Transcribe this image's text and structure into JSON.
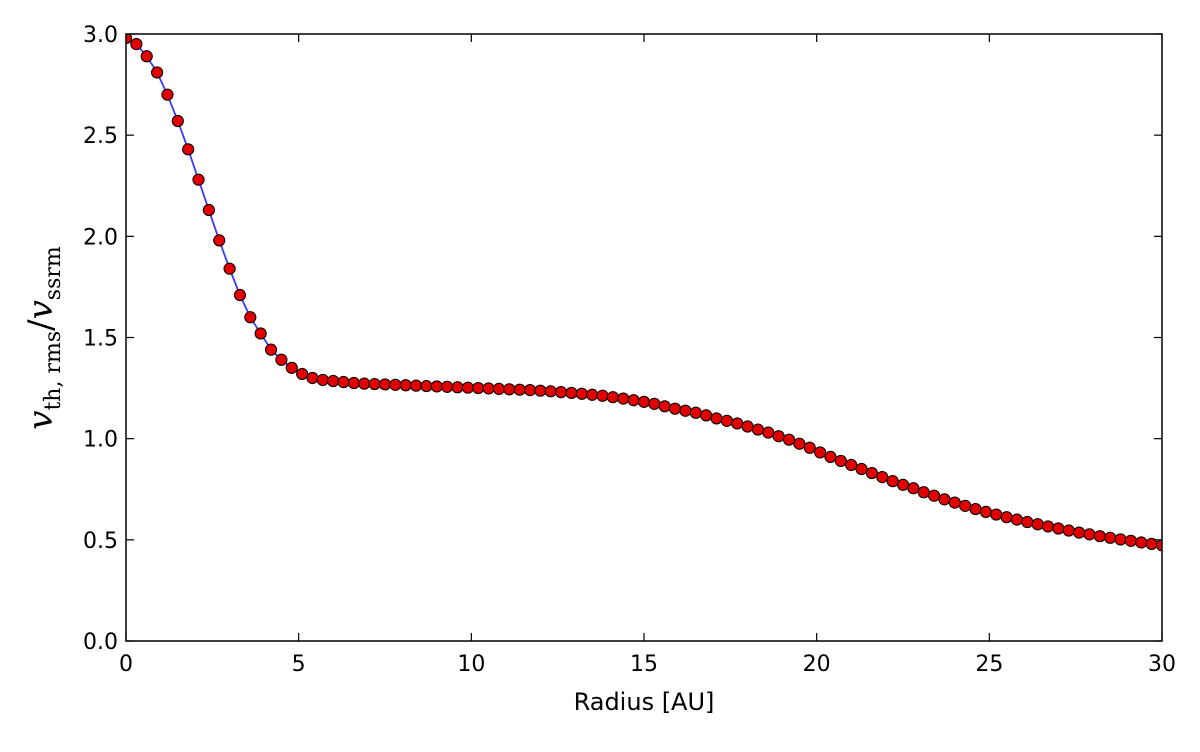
{
  "chart_data": {
    "type": "line",
    "xlabel": "Radius [AU]",
    "ylabel": {
      "main": "v",
      "sub1": "th, rms",
      "slash": "/",
      "main2": "v",
      "sub2": "ssrm"
    },
    "xlim": [
      0,
      30
    ],
    "ylim": [
      0,
      3.0
    ],
    "xticks": [
      0,
      5,
      10,
      15,
      20,
      25,
      30
    ],
    "xtick_labels": [
      "0",
      "5",
      "10",
      "15",
      "20",
      "25",
      "30"
    ],
    "yticks": [
      0,
      0.5,
      1.0,
      1.5,
      2.0,
      2.5,
      3.0
    ],
    "ytick_labels": [
      "0.0",
      "0.5",
      "1.0",
      "1.5",
      "2.0",
      "2.5",
      "3.0"
    ],
    "grid": false,
    "line_color": "#3b3bff",
    "marker_color": "#e00000",
    "series": [
      {
        "x": [
          0.0,
          0.3,
          0.6,
          0.9,
          1.2,
          1.5,
          1.8,
          2.1,
          2.4,
          2.7,
          3.0,
          3.3,
          3.6,
          3.9,
          4.2,
          4.5,
          4.8,
          5.1,
          5.4,
          5.7,
          6.0,
          6.3,
          6.6,
          6.9,
          7.2,
          7.5,
          7.8,
          8.1,
          8.4,
          8.7,
          9.0,
          9.3,
          9.6,
          9.9,
          10.2,
          10.5,
          10.8,
          11.1,
          11.4,
          11.7,
          12.0,
          12.3,
          12.6,
          12.9,
          13.2,
          13.5,
          13.8,
          14.1,
          14.4,
          14.7,
          15.0,
          15.3,
          15.6,
          15.9,
          16.2,
          16.5,
          16.8,
          17.1,
          17.4,
          17.7,
          18.0,
          18.3,
          18.6,
          18.9,
          19.2,
          19.5,
          19.8,
          20.1,
          20.4,
          20.7,
          21.0,
          21.3,
          21.6,
          21.9,
          22.2,
          22.5,
          22.8,
          23.1,
          23.4,
          23.7,
          24.0,
          24.3,
          24.6,
          24.9,
          25.2,
          25.5,
          25.8,
          26.1,
          26.4,
          26.7,
          27.0,
          27.3,
          27.6,
          27.9,
          28.2,
          28.5,
          28.8,
          29.1,
          29.4,
          29.7,
          30.0
        ],
        "y": [
          2.98,
          2.95,
          2.89,
          2.81,
          2.7,
          2.57,
          2.43,
          2.28,
          2.13,
          1.98,
          1.84,
          1.71,
          1.6,
          1.52,
          1.44,
          1.39,
          1.35,
          1.32,
          1.3,
          1.29,
          1.285,
          1.28,
          1.275,
          1.272,
          1.27,
          1.268,
          1.266,
          1.264,
          1.262,
          1.26,
          1.258,
          1.256,
          1.254,
          1.252,
          1.25,
          1.248,
          1.246,
          1.244,
          1.242,
          1.24,
          1.237,
          1.234,
          1.23,
          1.226,
          1.222,
          1.217,
          1.212,
          1.205,
          1.198,
          1.19,
          1.182,
          1.172,
          1.16,
          1.148,
          1.138,
          1.128,
          1.115,
          1.1,
          1.088,
          1.075,
          1.06,
          1.045,
          1.03,
          1.012,
          0.995,
          0.975,
          0.955,
          0.932,
          0.91,
          0.89,
          0.87,
          0.85,
          0.83,
          0.81,
          0.79,
          0.772,
          0.755,
          0.735,
          0.718,
          0.7,
          0.684,
          0.668,
          0.652,
          0.638,
          0.625,
          0.612,
          0.6,
          0.588,
          0.577,
          0.566,
          0.556,
          0.546,
          0.536,
          0.527,
          0.518,
          0.51,
          0.502,
          0.495,
          0.487,
          0.48,
          0.473
        ]
      }
    ]
  }
}
